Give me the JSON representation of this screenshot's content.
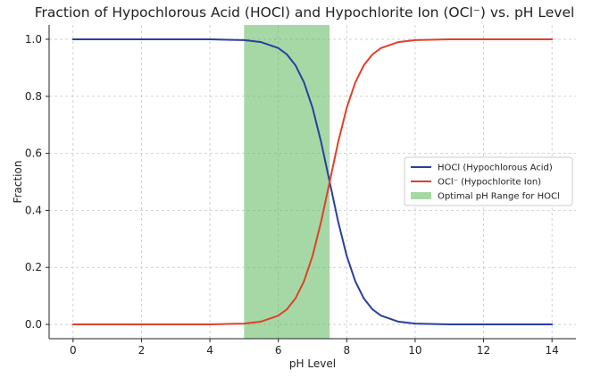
{
  "chart_data": {
    "type": "line",
    "title": "Fraction of Hypochlorous Acid (HOCl) and Hypochlorite Ion (OCl⁻) vs. pH Level",
    "xlabel": "pH Level",
    "ylabel": "Fraction",
    "xlim": [
      -0.7,
      14.7
    ],
    "ylim": [
      -0.05,
      1.05
    ],
    "x_ticks": [
      0,
      2,
      4,
      6,
      8,
      10,
      12,
      14
    ],
    "x_tick_labels": [
      "0",
      "2",
      "4",
      "6",
      "8",
      "10",
      "12",
      "14"
    ],
    "y_ticks": [
      0.0,
      0.2,
      0.4,
      0.6,
      0.8,
      1.0
    ],
    "y_tick_labels": [
      "0.0",
      "0.2",
      "0.4",
      "0.6",
      "0.8",
      "1.0"
    ],
    "grid": true,
    "legend_position": "center-right",
    "series": [
      {
        "name": "HOCl (Hypochlorous Acid)",
        "color": "#2a3f9d",
        "x": [
          0,
          1,
          2,
          3,
          4,
          5,
          5.5,
          6,
          6.25,
          6.5,
          6.75,
          7,
          7.25,
          7.5,
          7.75,
          8,
          8.25,
          8.5,
          8.75,
          9,
          9.5,
          10,
          11,
          12,
          13,
          14
        ],
        "values": [
          1.0,
          1.0,
          1.0,
          1.0,
          0.9997,
          0.997,
          0.99,
          0.969,
          0.947,
          0.909,
          0.849,
          0.76,
          0.64,
          0.5,
          0.36,
          0.24,
          0.151,
          0.091,
          0.053,
          0.031,
          0.01,
          0.003,
          0.0003,
          0.0,
          0.0,
          0.0
        ]
      },
      {
        "name": "OCl⁻ (Hypochlorite Ion)",
        "color": "#e0402a",
        "x": [
          0,
          1,
          2,
          3,
          4,
          5,
          5.5,
          6,
          6.25,
          6.5,
          6.75,
          7,
          7.25,
          7.5,
          7.75,
          8,
          8.25,
          8.5,
          8.75,
          9,
          9.5,
          10,
          11,
          12,
          13,
          14
        ],
        "values": [
          0.0,
          0.0,
          0.0,
          0.0,
          0.0003,
          0.003,
          0.01,
          0.031,
          0.053,
          0.091,
          0.151,
          0.24,
          0.36,
          0.5,
          0.64,
          0.76,
          0.849,
          0.909,
          0.947,
          0.969,
          0.99,
          0.997,
          0.9997,
          1.0,
          1.0,
          1.0
        ]
      }
    ],
    "shaded_region": {
      "name": "Optimal pH Range for HOCl",
      "x_start": 5.0,
      "x_end": 7.5,
      "color": "#5cb85c"
    }
  }
}
